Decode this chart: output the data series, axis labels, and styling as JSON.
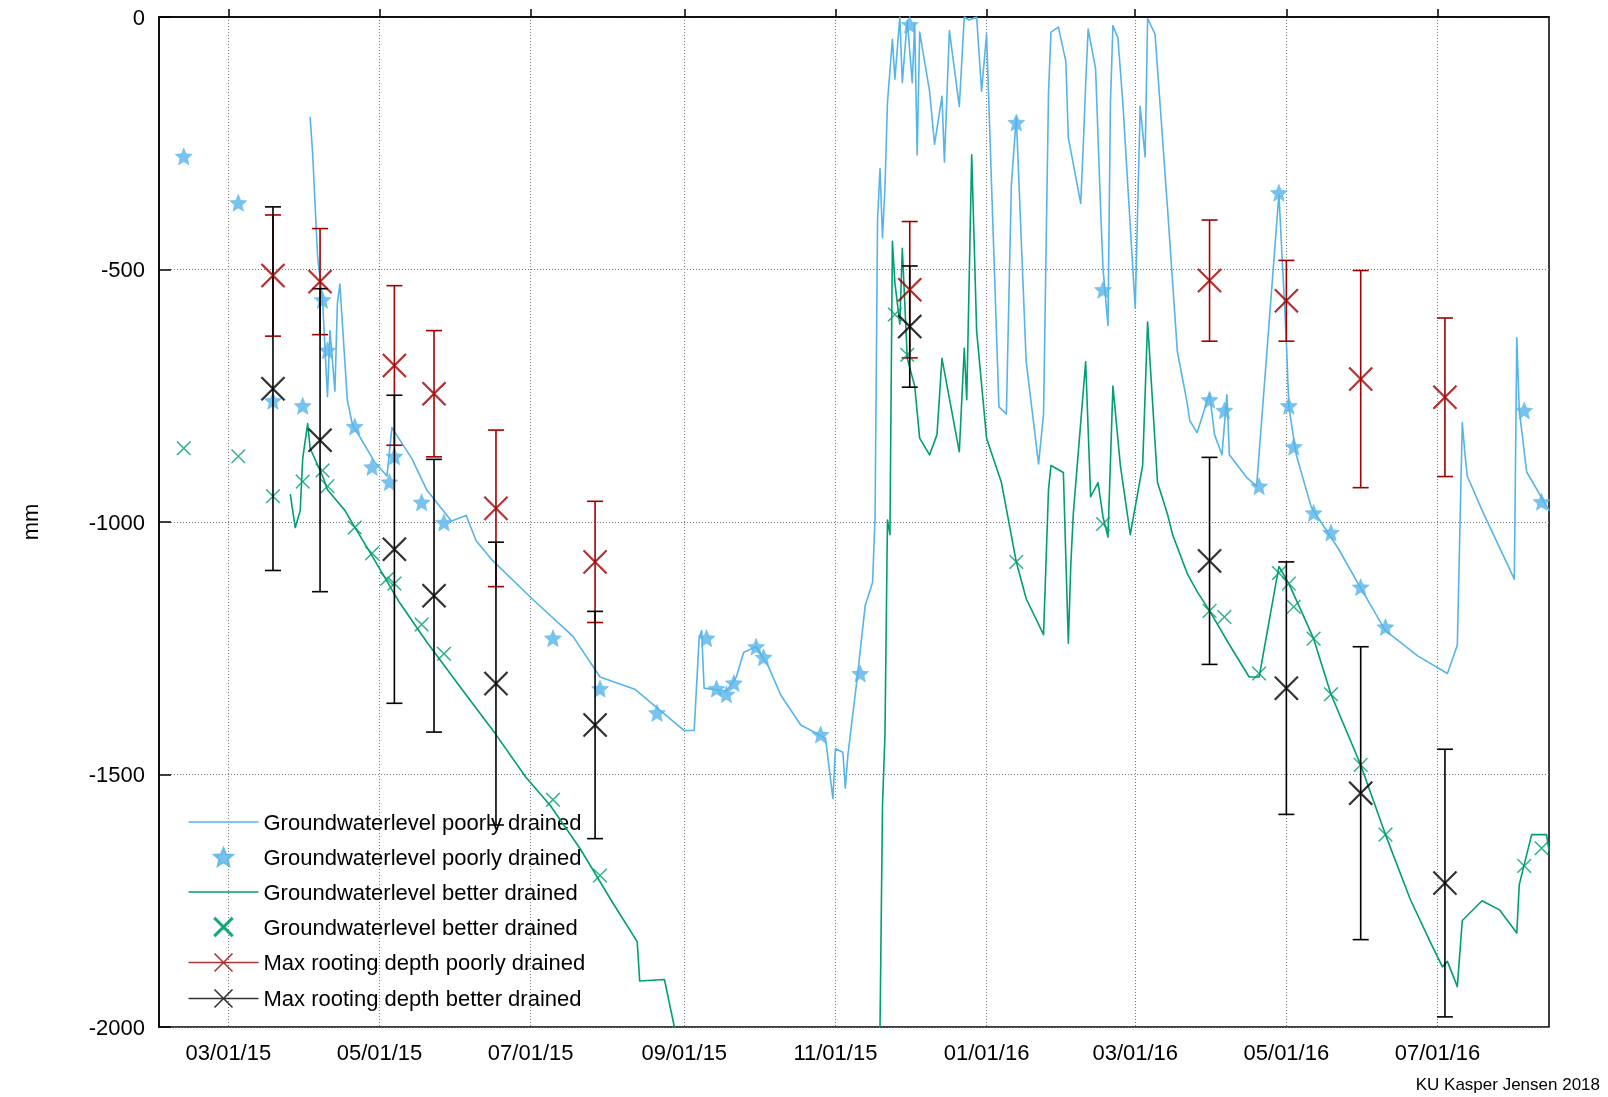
{
  "chart_data": {
    "type": "line",
    "ylabel": "mm",
    "xlim": [
      "2015-02-01",
      "2016-08-15"
    ],
    "xticks": [
      {
        "value": "2015-03-01",
        "label": "03/01/15"
      },
      {
        "value": "2015-05-01",
        "label": "05/01/15"
      },
      {
        "value": "2015-07-01",
        "label": "07/01/15"
      },
      {
        "value": "2015-09-01",
        "label": "09/01/15"
      },
      {
        "value": "2015-11-01",
        "label": "11/01/15"
      },
      {
        "value": "2016-01-01",
        "label": "01/01/16"
      },
      {
        "value": "2016-03-01",
        "label": "03/01/16"
      },
      {
        "value": "2016-05-01",
        "label": "05/01/16"
      },
      {
        "value": "2016-07-01",
        "label": "07/01/16"
      }
    ],
    "ylim": [
      -2000,
      0
    ],
    "yticks": [
      -2000,
      -1500,
      -1000,
      -500,
      0
    ],
    "grid": true,
    "legend": "bottom left",
    "annotations": [
      "KU Kasper Jensen 2018"
    ],
    "series": [
      {
        "name": "Groundwaterlevel poorly drained",
        "marker": "none",
        "color": "#56b4e9",
        "x": [
          "2015-04-03",
          "2015-04-04",
          "2015-04-06",
          "2015-04-08",
          "2015-04-10",
          "2015-04-11",
          "2015-04-13",
          "2015-04-14",
          "2015-04-15",
          "2015-04-18",
          "2015-04-20",
          "2015-04-29",
          "2015-05-04",
          "2015-05-06",
          "2015-05-14",
          "2015-05-20",
          "2015-05-30",
          "2015-06-05",
          "2015-06-09",
          "2015-06-15",
          "2015-07-02",
          "2015-07-18",
          "2015-07-29",
          "2015-08-12",
          "2015-09-01",
          "2015-09-05",
          "2015-09-07",
          "2015-09-08",
          "2015-09-09",
          "2015-09-18",
          "2015-09-22",
          "2015-09-25",
          "2015-09-30",
          "2015-10-05",
          "2015-10-10",
          "2015-10-18",
          "2015-10-28",
          "2015-10-31",
          "2015-11-01",
          "2015-11-04",
          "2015-11-05",
          "2015-11-06",
          "2015-11-10",
          "2015-11-13",
          "2015-11-16",
          "2015-11-17",
          "2015-11-18",
          "2015-11-19",
          "2015-11-20",
          "2015-11-21",
          "2015-11-22",
          "2015-11-24",
          "2015-11-25",
          "2015-11-27",
          "2015-11-28",
          "2015-11-30",
          "2015-12-02",
          "2015-12-03",
          "2015-12-04",
          "2015-12-05",
          "2015-12-09",
          "2015-12-11",
          "2015-12-14",
          "2015-12-15",
          "2015-12-17",
          "2015-12-21",
          "2015-12-23",
          "2015-12-25",
          "2015-12-28",
          "2015-12-30",
          "2016-01-01",
          "2016-01-06",
          "2016-01-09",
          "2016-01-11",
          "2016-01-13",
          "2016-01-17",
          "2016-01-22",
          "2016-01-24",
          "2016-01-26",
          "2016-01-27",
          "2016-01-30",
          "2016-02-02",
          "2016-02-03",
          "2016-02-08",
          "2016-02-09",
          "2016-02-10",
          "2016-02-11",
          "2016-02-14",
          "2016-02-16",
          "2016-02-17",
          "2016-02-19",
          "2016-02-20",
          "2016-02-21",
          "2016-02-23",
          "2016-02-25",
          "2016-03-01",
          "2016-03-03",
          "2016-03-05",
          "2016-03-06",
          "2016-03-09",
          "2016-03-14",
          "2016-03-18",
          "2016-03-22",
          "2016-03-23",
          "2016-03-26",
          "2016-03-31",
          "2016-04-02",
          "2016-04-05",
          "2016-04-07",
          "2016-04-08",
          "2016-04-15",
          "2016-04-19",
          "2016-04-28",
          "2016-05-01",
          "2016-05-02",
          "2016-05-05",
          "2016-05-11",
          "2016-05-22",
          "2016-05-31",
          "2016-06-10",
          "2016-06-23",
          "2016-07-05",
          "2016-07-09",
          "2016-07-11",
          "2016-07-12",
          "2016-07-13",
          "2016-07-19",
          "2016-08-01",
          "2016-08-02",
          "2016-08-03",
          "2016-08-06",
          "2016-08-15"
        ],
        "values": [
          -199,
          -270,
          -474,
          -560,
          -752,
          -621,
          -741,
          -567,
          -529,
          -758,
          -806,
          -881,
          -909,
          -813,
          -874,
          -936,
          -998,
          -987,
          -1037,
          -1073,
          -1154,
          -1226,
          -1307,
          -1331,
          -1413,
          -1413,
          -1230,
          -1215,
          -1329,
          -1335,
          -1307,
          -1258,
          -1247,
          -1287,
          -1343,
          -1402,
          -1428,
          -1548,
          -1449,
          -1456,
          -1527,
          -1463,
          -1300,
          -1166,
          -1120,
          -990,
          -403,
          -300,
          -437,
          -337,
          -170,
          -44,
          -123,
          0,
          -130,
          -6,
          -130,
          -13,
          -273,
          -30,
          -147,
          -252,
          -157,
          -287,
          -27,
          -177,
          0,
          -6,
          0,
          -147,
          -34,
          -772,
          -786,
          -334,
          -198,
          -683,
          -885,
          -786,
          -150,
          -30,
          -20,
          -88,
          -239,
          -369,
          -259,
          -133,
          -24,
          -102,
          -376,
          -498,
          -611,
          -170,
          -17,
          -41,
          -170,
          -577,
          -177,
          -277,
          -3,
          -34,
          -376,
          -662,
          -765,
          -799,
          -823,
          -745,
          -827,
          -867,
          -748,
          -867,
          -912,
          -929,
          -351,
          -642,
          -772,
          -867,
          -970,
          -1053,
          -1131,
          -1215,
          -1265,
          -1300,
          -1244,
          -803,
          -861,
          -909,
          -977,
          -1113,
          -635,
          -779,
          -901,
          -977
        ]
      },
      {
        "name": "Groundwaterlevel poorly drained",
        "type": "scatter",
        "marker": "star",
        "color": "#56b4e9",
        "x": [
          "2015-02-11",
          "2015-03-05",
          "2015-03-19",
          "2015-03-31",
          "2015-04-08",
          "2015-04-10",
          "2015-04-21",
          "2015-04-28",
          "2015-05-05",
          "2015-05-07",
          "2015-05-18",
          "2015-05-27",
          "2015-07-10",
          "2015-07-29",
          "2015-08-21",
          "2015-09-10",
          "2015-09-14",
          "2015-09-18",
          "2015-09-21",
          "2015-09-30",
          "2015-10-03",
          "2015-10-26",
          "2015-11-11",
          "2015-12-01",
          "2016-01-13",
          "2016-02-17",
          "2016-03-31",
          "2016-04-06",
          "2016-04-20",
          "2016-04-28",
          "2016-05-02",
          "2016-05-04",
          "2016-05-12",
          "2016-05-19",
          "2016-05-31",
          "2016-06-10",
          "2016-08-05",
          "2016-08-12"
        ],
        "values": [
          -276,
          -368,
          -760,
          -770,
          -560,
          -660,
          -811,
          -891,
          -921,
          -870,
          -961,
          -1001,
          -1230,
          -1330,
          -1378,
          -1230,
          -1330,
          -1341,
          -1319,
          -1247,
          -1268,
          -1421,
          -1300,
          -15,
          -209,
          -540,
          -758,
          -779,
          -929,
          -348,
          -770,
          -851,
          -982,
          -1021,
          -1129,
          -1208,
          -779,
          -960
        ]
      },
      {
        "name": "Groundwaterlevel better drained",
        "marker": "none",
        "color": "#009e73",
        "x": [
          "2015-03-26",
          "2015-03-28",
          "2015-03-30",
          "2015-03-31",
          "2015-04-02",
          "2015-04-03",
          "2015-04-08",
          "2015-04-10",
          "2015-04-17",
          "2015-04-21",
          "2015-04-28",
          "2015-05-09",
          "2015-05-20",
          "2015-06-04",
          "2015-06-17",
          "2015-06-29",
          "2015-07-09",
          "2015-07-21",
          "2015-08-03",
          "2015-08-13",
          "2015-08-14",
          "2015-08-24",
          "2015-08-28",
          "2015-10-01",
          "2015-11-19",
          "2015-11-20",
          "2015-11-21",
          "2015-11-22",
          "2015-11-23",
          "2015-11-24",
          "2015-11-25",
          "2015-11-27",
          "2015-11-28",
          "2015-11-30",
          "2015-12-03",
          "2015-12-05",
          "2015-12-09",
          "2015-12-12",
          "2015-12-14",
          "2015-12-21",
          "2015-12-23",
          "2015-12-24",
          "2015-12-26",
          "2015-12-28",
          "2016-01-01",
          "2016-01-07",
          "2016-01-13",
          "2016-01-17",
          "2016-01-24",
          "2016-01-26",
          "2016-01-27",
          "2016-02-01",
          "2016-02-03",
          "2016-02-04",
          "2016-02-05",
          "2016-02-10",
          "2016-02-12",
          "2016-02-15",
          "2016-02-17",
          "2016-02-19",
          "2016-02-21",
          "2016-02-24",
          "2016-02-28",
          "2016-03-04",
          "2016-03-06",
          "2016-03-10",
          "2016-03-14",
          "2016-03-16",
          "2016-03-22",
          "2016-03-26",
          "2016-03-31",
          "2016-04-09",
          "2016-04-16",
          "2016-04-20",
          "2016-04-28",
          "2016-05-02",
          "2016-05-07",
          "2016-05-12",
          "2016-05-19",
          "2016-05-31",
          "2016-06-10",
          "2016-06-20",
          "2016-06-28",
          "2016-07-03",
          "2016-07-05",
          "2016-07-09",
          "2016-07-11",
          "2016-07-19",
          "2016-07-26",
          "2016-08-02",
          "2016-08-03",
          "2016-08-08",
          "2016-08-14",
          "2016-08-15"
        ],
        "values": [
          -946,
          -1011,
          -977,
          -874,
          -805,
          -854,
          -909,
          -936,
          -977,
          -1010,
          -1067,
          -1159,
          -1237,
          -1336,
          -1421,
          -1505,
          -1562,
          -1647,
          -1753,
          -1831,
          -1909,
          -1906,
          -2000,
          null,
          -2000,
          -1562,
          -1421,
          -996,
          -1025,
          -444,
          -526,
          -608,
          -458,
          -676,
          -731,
          -834,
          -867,
          -827,
          -676,
          -861,
          -656,
          -758,
          -273,
          -622,
          -834,
          -922,
          -1079,
          -1152,
          -1223,
          -936,
          -888,
          -902,
          -1240,
          -1085,
          -984,
          -683,
          -950,
          -922,
          -990,
          -1030,
          -731,
          -888,
          -1025,
          -888,
          -604,
          -922,
          -984,
          -1024,
          -1102,
          -1138,
          -1176,
          -1251,
          -1307,
          -1307,
          -1088,
          -1122,
          -1176,
          -1231,
          -1341,
          -1481,
          -1619,
          -1747,
          -1831,
          -1881,
          -1870,
          -1920,
          -1789,
          -1750,
          -1768,
          -1814,
          -1718,
          -1619,
          -1619,
          -1650
        ]
      },
      {
        "name": "Groundwaterlevel better drained",
        "type": "scatter",
        "marker": "cross",
        "color": "#009e73",
        "x": [
          "2015-02-11",
          "2015-03-05",
          "2015-03-19",
          "2015-03-31",
          "2015-04-08",
          "2015-04-10",
          "2015-04-21",
          "2015-04-28",
          "2015-05-04",
          "2015-05-07",
          "2015-05-18",
          "2015-05-27",
          "2015-07-10",
          "2015-07-29",
          "2015-11-25",
          "2015-11-30",
          "2016-01-13",
          "2016-02-17",
          "2016-03-31",
          "2016-04-06",
          "2016-04-20",
          "2016-04-28",
          "2016-05-02",
          "2016-05-04",
          "2016-05-12",
          "2016-05-19",
          "2016-05-31",
          "2016-06-10",
          "2016-08-05",
          "2016-08-12"
        ],
        "values": [
          -854,
          -870,
          -949,
          -920,
          -898,
          -929,
          -1011,
          -1062,
          -1113,
          -1122,
          -1203,
          -1261,
          -1550,
          -1700,
          -589,
          -669,
          -1079,
          -1004,
          -1176,
          -1188,
          -1300,
          -1101,
          -1122,
          -1168,
          -1231,
          -1341,
          -1481,
          -1619,
          -1681,
          -1646
        ]
      },
      {
        "name": "Max rooting depth poorly drained",
        "type": "scatter",
        "marker": "cross",
        "color": "#a00000",
        "x": [
          "2015-03-19",
          "2015-04-07",
          "2015-05-07",
          "2015-05-23",
          "2015-06-17",
          "2015-07-27",
          "2015-12-01",
          "2016-03-31",
          "2016-05-01",
          "2016-05-31",
          "2016-07-04"
        ],
        "values": [
          -512,
          -524,
          -690,
          -746,
          -973,
          -1079,
          -540,
          -522,
          -562,
          -717,
          -753
        ],
        "errors": [
          120,
          105,
          158,
          125,
          155,
          120,
          135,
          120,
          80,
          215,
          157
        ]
      },
      {
        "name": "Max rooting depth better drained",
        "type": "scatter",
        "marker": "cross",
        "color": "#000000",
        "x": [
          "2015-03-19",
          "2015-04-07",
          "2015-05-07",
          "2015-05-23",
          "2015-06-17",
          "2015-07-27",
          "2015-12-01",
          "2016-03-31",
          "2016-05-01",
          "2016-05-31",
          "2016-07-04"
        ],
        "values": [
          -736,
          -838,
          -1054,
          -1146,
          -1320,
          -1402,
          -613,
          -1077,
          -1329,
          -1537,
          -1715
        ],
        "errors": [
          360,
          300,
          305,
          270,
          280,
          225,
          120,
          205,
          250,
          290,
          265
        ]
      }
    ]
  }
}
